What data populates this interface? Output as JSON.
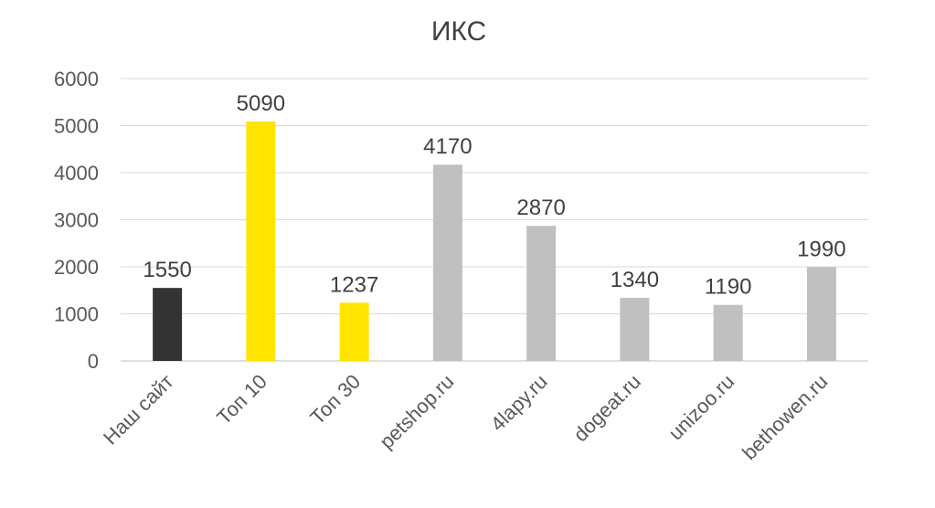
{
  "chart_data": {
    "type": "bar",
    "title": "ИКС",
    "xlabel": "",
    "ylabel": "",
    "ylim": [
      0,
      6000
    ],
    "yticks": [
      0,
      1000,
      2000,
      3000,
      4000,
      5000,
      6000
    ],
    "grid": true,
    "legend": "none",
    "categories": [
      "Наш сайт",
      "Топ 10",
      "Топ 30",
      "petshop.ru",
      "4lapy.ru",
      "dogeat.ru",
      "unizoo.ru",
      "bethowen.ru"
    ],
    "values": [
      1550,
      5090,
      1237,
      4170,
      2870,
      1340,
      1190,
      1990
    ],
    "data_labels": [
      "1550",
      "5090",
      "1237",
      "4170",
      "2870",
      "1340",
      "1190",
      "1990"
    ],
    "bar_colors": [
      "#333333",
      "#ffe500",
      "#ffe500",
      "#c0c0c0",
      "#c0c0c0",
      "#c0c0c0",
      "#c0c0c0",
      "#c0c0c0"
    ]
  }
}
